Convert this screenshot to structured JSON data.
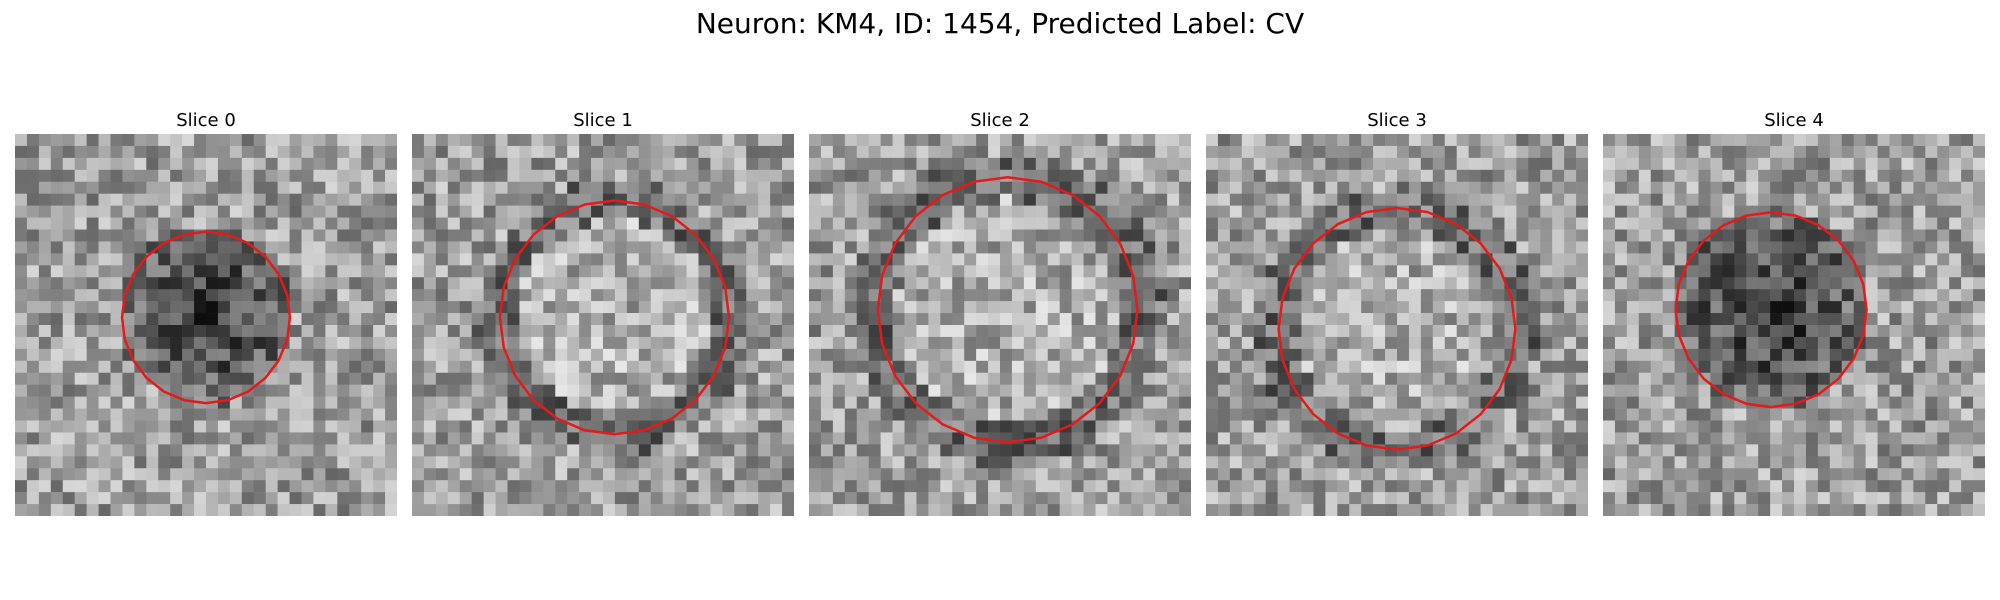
{
  "figure": {
    "title": "Neuron: KM4, ID: 1454, Predicted Label: CV",
    "outline_color": "#e41a1c"
  },
  "slices": [
    {
      "title": "Slice 0",
      "center": "dark"
    },
    {
      "title": "Slice 1",
      "center": "light"
    },
    {
      "title": "Slice 2",
      "center": "light"
    },
    {
      "title": "Slice 3",
      "center": "light"
    },
    {
      "title": "Slice 4",
      "center": "dark"
    }
  ]
}
